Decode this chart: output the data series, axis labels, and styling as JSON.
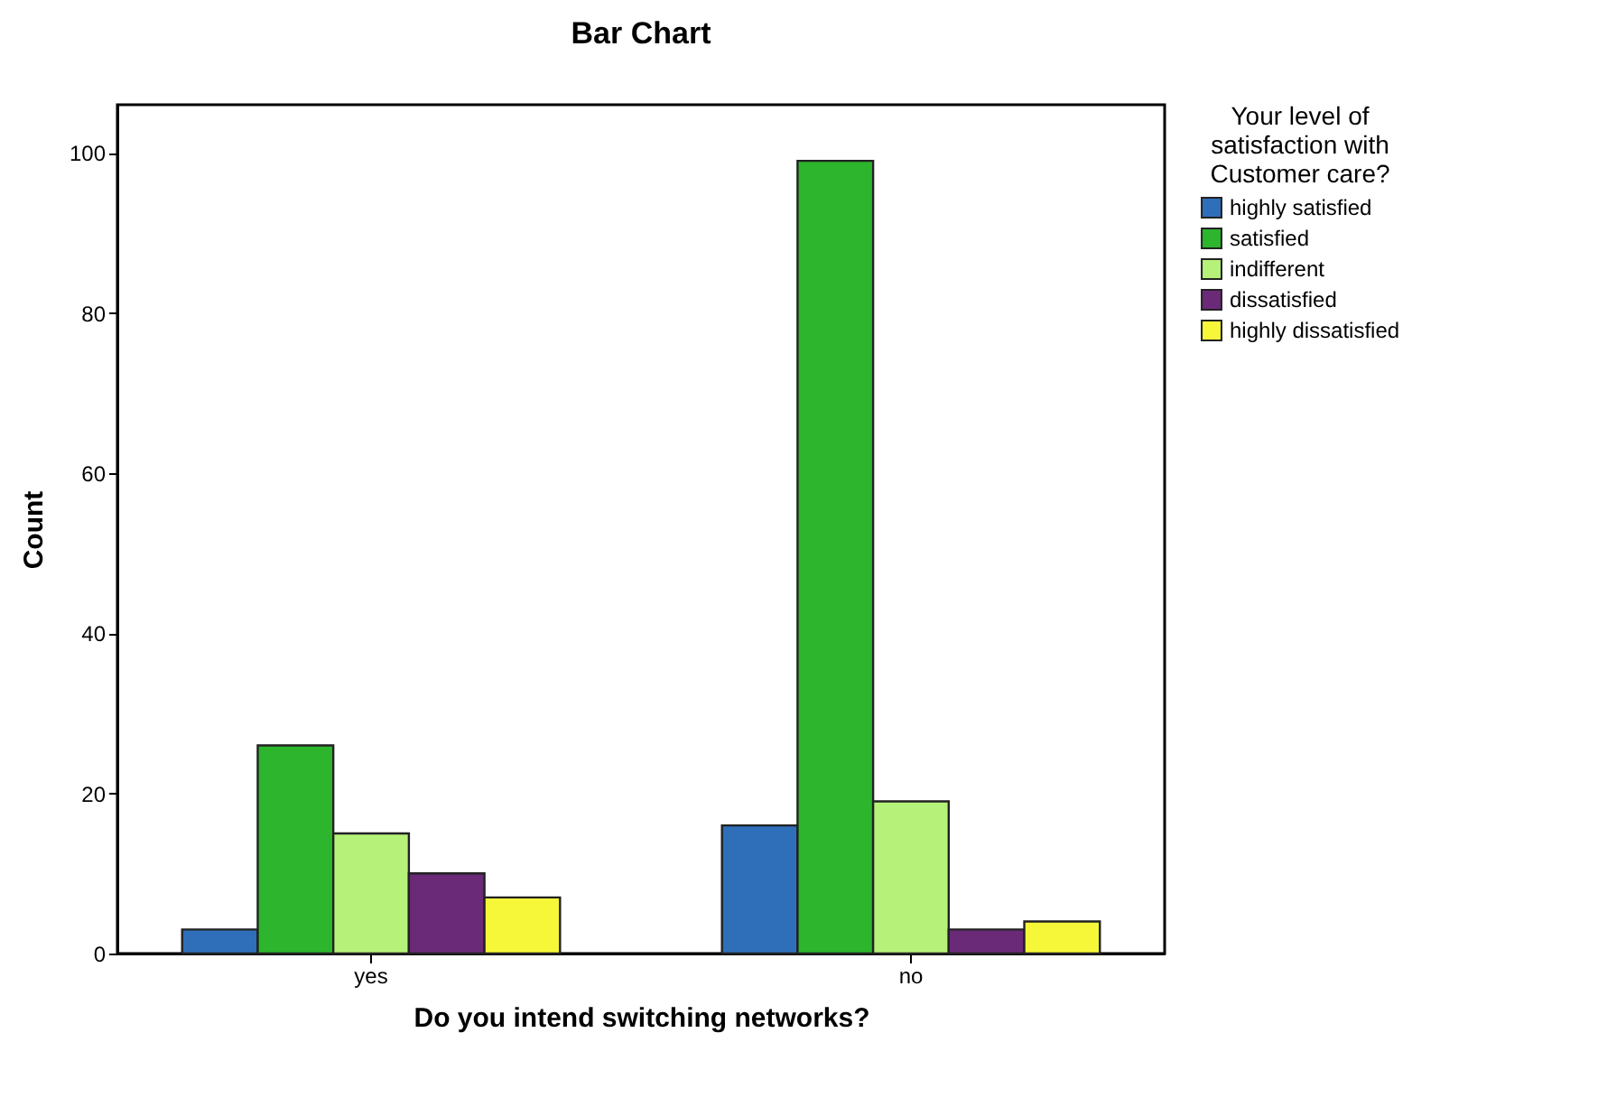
{
  "chart_data": {
    "type": "bar",
    "title": "Bar Chart",
    "xlabel": "Do you intend switching networks?",
    "ylabel": "Count",
    "legend_title": "Your level of satisfaction with Customer care?",
    "categories": [
      "yes",
      "no"
    ],
    "series": [
      {
        "name": "highly satisfied",
        "color": "#2f6fba",
        "values": [
          3,
          16
        ]
      },
      {
        "name": "satisfied",
        "color": "#2db52d",
        "values": [
          26,
          99
        ]
      },
      {
        "name": "indifferent",
        "color": "#b6f27a",
        "values": [
          15,
          19
        ]
      },
      {
        "name": "dissatisfied",
        "color": "#6b2a78",
        "values": [
          10,
          3
        ]
      },
      {
        "name": "highly dissatisfied",
        "color": "#f7f73a",
        "values": [
          7,
          4
        ]
      }
    ],
    "ylim": [
      0,
      106
    ],
    "yticks": [
      0,
      20,
      40,
      60,
      80,
      100
    ],
    "grid": false,
    "legend": "top right"
  }
}
